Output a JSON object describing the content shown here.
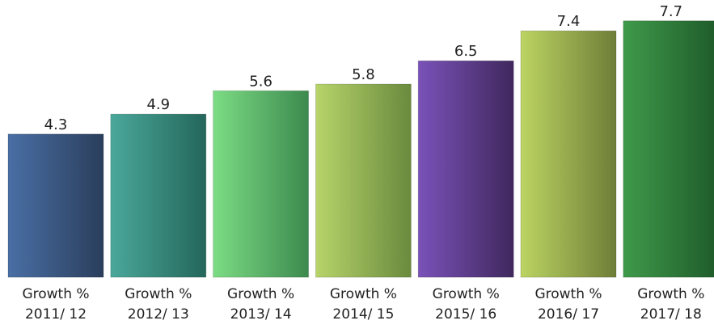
{
  "chart_data": {
    "type": "bar",
    "categories": [
      [
        "Growth %",
        "2011/ 12"
      ],
      [
        "Growth %",
        "2012/ 13"
      ],
      [
        "Growth %",
        "2013/ 14"
      ],
      [
        "Growth %",
        "2014/ 15"
      ],
      [
        "Growth %",
        "2015/ 16"
      ],
      [
        "Growth %",
        "2016/ 17"
      ],
      [
        "Growth %",
        "2017/ 18"
      ]
    ],
    "values": [
      4.3,
      4.9,
      5.6,
      5.8,
      6.5,
      7.4,
      7.7
    ],
    "value_labels": [
      "4.3",
      "4.9",
      "5.6",
      "5.8",
      "6.5",
      "7.4",
      "7.7"
    ],
    "title": "",
    "xlabel": "",
    "ylabel": "",
    "ylim": [
      0,
      8
    ],
    "grid": false,
    "legend": "none",
    "bar_colors": [
      [
        "#4a6fa5",
        "#2a3e5c"
      ],
      [
        "#4aa89a",
        "#24665b"
      ],
      [
        "#7cdc84",
        "#3c8a4e"
      ],
      [
        "#b7d46a",
        "#6a8a3e"
      ],
      [
        "#7a52b8",
        "#40285e"
      ],
      [
        "#bcd462",
        "#6e7e38"
      ],
      [
        "#3f9a4a",
        "#1e5a2a"
      ]
    ]
  }
}
